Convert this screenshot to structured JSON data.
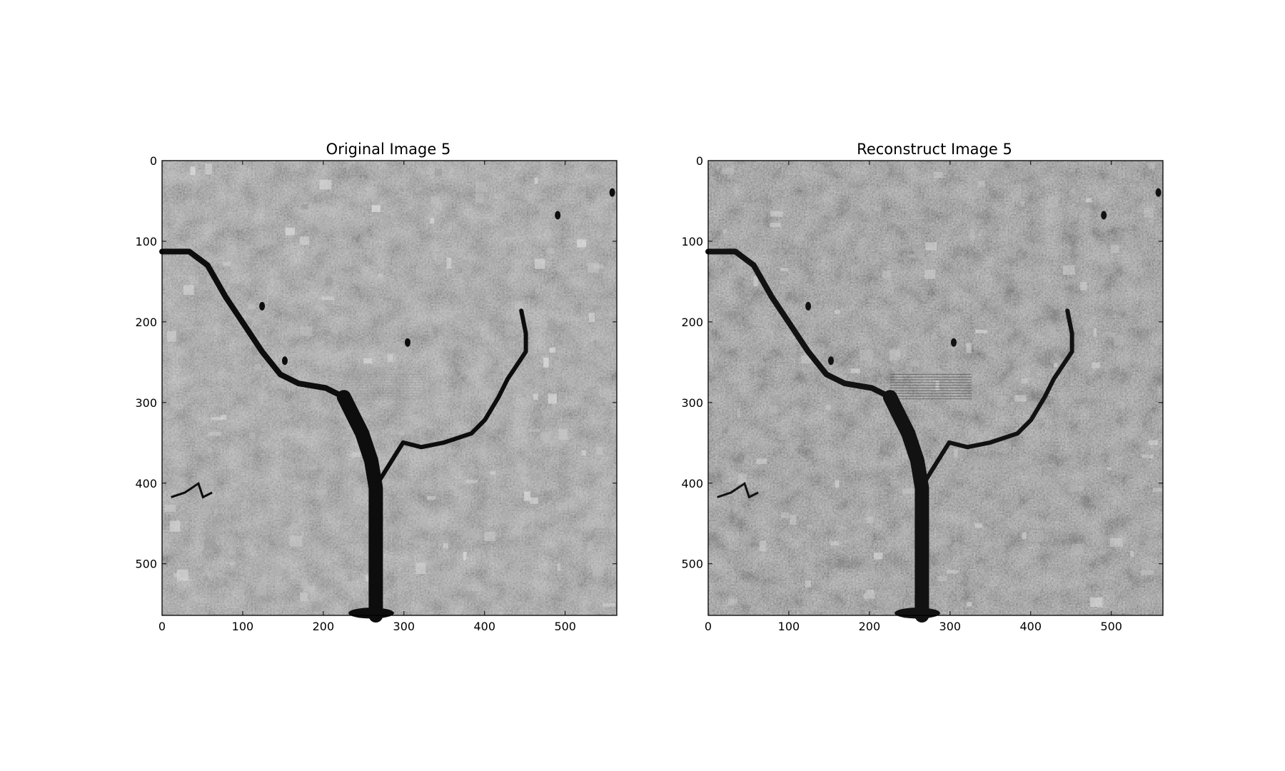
{
  "figure": {
    "background": "#ffffff",
    "panels": [
      {
        "title": "Original Image 5",
        "image_description": "grayscale satellite image of a city with a dark river branching in a Y shape",
        "xticks": [
          "0",
          "100",
          "200",
          "300",
          "400",
          "500"
        ],
        "yticks": [
          "0",
          "100",
          "200",
          "300",
          "400",
          "500"
        ],
        "extent": [
          0,
          564
        ],
        "variant": "original"
      },
      {
        "title": "Reconstruct Image 5",
        "image_description": "reconstructed grayscale satellite image, slightly darker and noisier",
        "xticks": [
          "0",
          "100",
          "200",
          "300",
          "400",
          "500"
        ],
        "yticks": [
          "0",
          "100",
          "200",
          "300",
          "400",
          "500"
        ],
        "extent": [
          0,
          564
        ],
        "variant": "reconstruct"
      }
    ]
  }
}
